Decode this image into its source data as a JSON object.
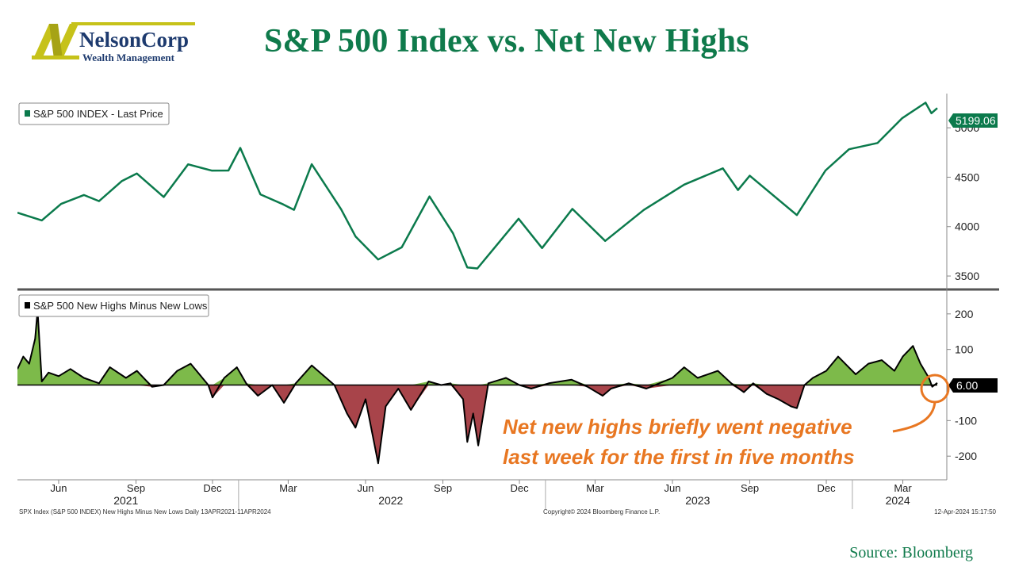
{
  "header": {
    "title": "S&P 500 Index vs. Net New Highs",
    "logo_text": "NelsonCorp",
    "logo_sub": "Wealth Management",
    "logo_letter": "N"
  },
  "colors": {
    "brand_green": "#0f7a4b",
    "logo_gold": "#c6c21a",
    "logo_navy": "#1d3a6e",
    "price_line": "#0b7a4c",
    "positive_fill": "#7dba4a",
    "negative_fill": "#a8444a",
    "annotation": "#e87722"
  },
  "chart_data": [
    {
      "type": "line",
      "legend": "S&P 500 INDEX - Last Price",
      "last_value_label": "5199.06",
      "y_ticks": [
        3500,
        4000,
        4500,
        5000
      ],
      "ylim": [
        3380,
        5330
      ],
      "xlim": [
        "2021-04-13",
        "2024-04-11"
      ],
      "series": [
        {
          "name": "S&P 500 INDEX - Last Price",
          "points": [
            [
              "2021-04-13",
              4141
            ],
            [
              "2021-05-12",
              4063
            ],
            [
              "2021-06-04",
              4230
            ],
            [
              "2021-07-01",
              4320
            ],
            [
              "2021-07-19",
              4258
            ],
            [
              "2021-08-15",
              4460
            ],
            [
              "2021-09-02",
              4537
            ],
            [
              "2021-10-04",
              4300
            ],
            [
              "2021-11-02",
              4630
            ],
            [
              "2021-11-30",
              4567
            ],
            [
              "2021-12-20",
              4568
            ],
            [
              "2022-01-03",
              4796
            ],
            [
              "2022-01-27",
              4326
            ],
            [
              "2022-02-23",
              4225
            ],
            [
              "2022-03-08",
              4170
            ],
            [
              "2022-03-29",
              4631
            ],
            [
              "2022-05-03",
              4175
            ],
            [
              "2022-05-20",
              3901
            ],
            [
              "2022-06-16",
              3667
            ],
            [
              "2022-07-14",
              3790
            ],
            [
              "2022-08-16",
              4305
            ],
            [
              "2022-09-13",
              3932
            ],
            [
              "2022-09-30",
              3586
            ],
            [
              "2022-10-12",
              3577
            ],
            [
              "2022-11-30",
              4080
            ],
            [
              "2022-12-28",
              3783
            ],
            [
              "2023-02-02",
              4179
            ],
            [
              "2023-03-13",
              3855
            ],
            [
              "2023-04-28",
              4169
            ],
            [
              "2023-06-15",
              4425
            ],
            [
              "2023-07-31",
              4589
            ],
            [
              "2023-08-18",
              4370
            ],
            [
              "2023-09-01",
              4515
            ],
            [
              "2023-10-27",
              4117
            ],
            [
              "2023-11-30",
              4568
            ],
            [
              "2023-12-28",
              4783
            ],
            [
              "2024-01-31",
              4846
            ],
            [
              "2024-02-29",
              5096
            ],
            [
              "2024-03-28",
              5254
            ],
            [
              "2024-04-04",
              5147
            ],
            [
              "2024-04-11",
              5199.06
            ]
          ]
        }
      ]
    },
    {
      "type": "area",
      "legend": "S&P 500 New Highs Minus New Lows",
      "last_value_label": "6.00",
      "y_ticks": [
        -200,
        -100,
        100,
        200
      ],
      "ylim": [
        -262,
        262
      ],
      "xlim": [
        "2021-04-13",
        "2024-04-11"
      ],
      "series": [
        {
          "name": "S&P 500 New Highs Minus New Lows",
          "points": [
            [
              "2021-04-13",
              45
            ],
            [
              "2021-04-20",
              80
            ],
            [
              "2021-04-27",
              60
            ],
            [
              "2021-05-04",
              130
            ],
            [
              "2021-05-07",
              210
            ],
            [
              "2021-05-12",
              10
            ],
            [
              "2021-05-20",
              35
            ],
            [
              "2021-06-01",
              25
            ],
            [
              "2021-06-15",
              45
            ],
            [
              "2021-07-01",
              20
            ],
            [
              "2021-07-19",
              5
            ],
            [
              "2021-08-01",
              50
            ],
            [
              "2021-08-20",
              20
            ],
            [
              "2021-09-02",
              40
            ],
            [
              "2021-09-20",
              -5
            ],
            [
              "2021-10-04",
              0
            ],
            [
              "2021-10-20",
              40
            ],
            [
              "2021-11-05",
              60
            ],
            [
              "2021-11-26",
              0
            ],
            [
              "2021-12-01",
              -35
            ],
            [
              "2021-12-15",
              20
            ],
            [
              "2021-12-30",
              50
            ],
            [
              "2022-01-10",
              5
            ],
            [
              "2022-01-24",
              -30
            ],
            [
              "2022-02-10",
              0
            ],
            [
              "2022-02-24",
              -50
            ],
            [
              "2022-03-10",
              5
            ],
            [
              "2022-03-29",
              55
            ],
            [
              "2022-04-25",
              0
            ],
            [
              "2022-05-10",
              -80
            ],
            [
              "2022-05-20",
              -120
            ],
            [
              "2022-06-01",
              -40
            ],
            [
              "2022-06-16",
              -220
            ],
            [
              "2022-06-25",
              -60
            ],
            [
              "2022-07-10",
              -10
            ],
            [
              "2022-07-25",
              -70
            ],
            [
              "2022-08-15",
              10
            ],
            [
              "2022-08-30",
              0
            ],
            [
              "2022-09-10",
              5
            ],
            [
              "2022-09-25",
              -40
            ],
            [
              "2022-09-30",
              -160
            ],
            [
              "2022-10-07",
              -80
            ],
            [
              "2022-10-13",
              -170
            ],
            [
              "2022-10-25",
              5
            ],
            [
              "2022-11-15",
              20
            ],
            [
              "2022-12-01",
              0
            ],
            [
              "2022-12-15",
              -10
            ],
            [
              "2023-01-05",
              5
            ],
            [
              "2023-02-01",
              15
            ],
            [
              "2023-02-20",
              -5
            ],
            [
              "2023-03-10",
              -30
            ],
            [
              "2023-03-20",
              -10
            ],
            [
              "2023-04-10",
              5
            ],
            [
              "2023-05-01",
              -10
            ],
            [
              "2023-06-01",
              20
            ],
            [
              "2023-06-15",
              50
            ],
            [
              "2023-07-01",
              20
            ],
            [
              "2023-07-25",
              40
            ],
            [
              "2023-08-10",
              5
            ],
            [
              "2023-08-25",
              -20
            ],
            [
              "2023-09-05",
              5
            ],
            [
              "2023-09-21",
              -25
            ],
            [
              "2023-10-05",
              -40
            ],
            [
              "2023-10-20",
              -60
            ],
            [
              "2023-10-27",
              -65
            ],
            [
              "2023-11-05",
              0
            ],
            [
              "2023-11-15",
              20
            ],
            [
              "2023-12-01",
              40
            ],
            [
              "2023-12-15",
              80
            ],
            [
              "2024-01-05",
              30
            ],
            [
              "2024-01-20",
              60
            ],
            [
              "2024-02-05",
              70
            ],
            [
              "2024-02-20",
              40
            ],
            [
              "2024-03-01",
              80
            ],
            [
              "2024-03-13",
              110
            ],
            [
              "2024-03-22",
              60
            ],
            [
              "2024-04-01",
              20
            ],
            [
              "2024-04-05",
              -5
            ],
            [
              "2024-04-11",
              6
            ]
          ]
        }
      ]
    }
  ],
  "x_axis": {
    "months": [
      {
        "label": "Jun",
        "date": "2021-06-01"
      },
      {
        "label": "Sep",
        "date": "2021-09-01"
      },
      {
        "label": "Dec",
        "date": "2021-12-01"
      },
      {
        "label": "Mar",
        "date": "2022-03-01"
      },
      {
        "label": "Jun",
        "date": "2022-06-01"
      },
      {
        "label": "Sep",
        "date": "2022-09-01"
      },
      {
        "label": "Dec",
        "date": "2022-12-01"
      },
      {
        "label": "Mar",
        "date": "2023-03-01"
      },
      {
        "label": "Jun",
        "date": "2023-06-01"
      },
      {
        "label": "Sep",
        "date": "2023-09-01"
      },
      {
        "label": "Dec",
        "date": "2023-12-01"
      },
      {
        "label": "Mar",
        "date": "2024-03-01"
      }
    ],
    "years": [
      {
        "label": "2021",
        "date": "2021-08-20"
      },
      {
        "label": "2022",
        "date": "2022-07-01"
      },
      {
        "label": "2023",
        "date": "2023-07-01"
      },
      {
        "label": "2024",
        "date": "2024-02-24"
      }
    ],
    "year_boundaries": [
      "2022-01-01",
      "2023-01-01",
      "2024-01-01"
    ]
  },
  "footer": {
    "left": "SPX Index (S&P 500 INDEX) New Highs Minus New Lows  Daily 13APR2021-11APR2024",
    "center": "Copyright© 2024 Bloomberg Finance L.P.",
    "right": "12-Apr-2024 15:17:50"
  },
  "annotation": {
    "line1": "Net new highs briefly went negative",
    "line2": "last week for the first in five months"
  },
  "source": "Source: Bloomberg"
}
